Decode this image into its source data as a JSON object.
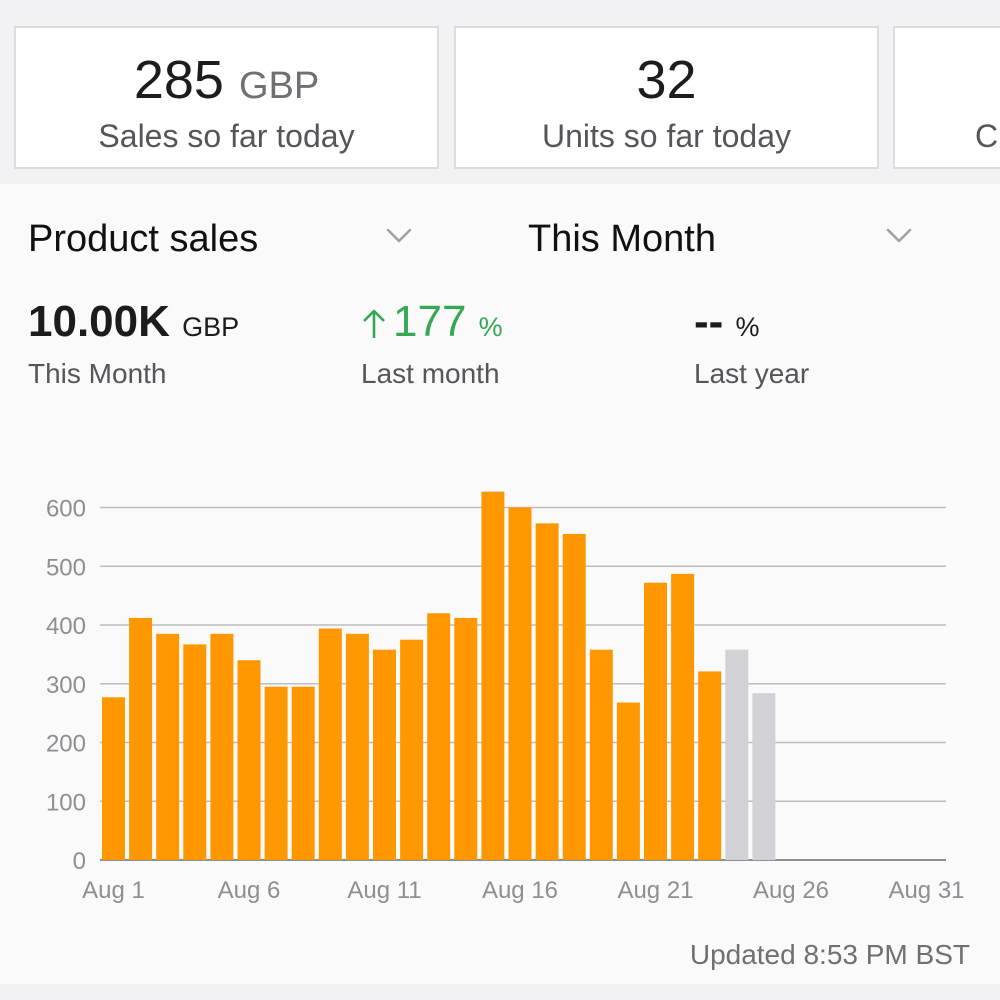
{
  "cards": [
    {
      "value": "285",
      "unit": "GBP",
      "label": "Sales so far today"
    },
    {
      "value": "32",
      "unit": "",
      "label": "Units so far today"
    },
    {
      "value": "",
      "unit": "",
      "label": "C"
    }
  ],
  "controls": {
    "metric_selector": {
      "label": "Product sales",
      "icon": "chevron-down-icon"
    },
    "period_selector": {
      "label": "This Month",
      "icon": "chevron-down-icon"
    }
  },
  "metrics": [
    {
      "value": "10.00K",
      "unit": "GBP",
      "label": "This Month"
    },
    {
      "value": "177",
      "unit": "%",
      "label": "Last month",
      "trend": "up",
      "icon": "arrow-up-icon",
      "color": "#34a853"
    },
    {
      "value": "--",
      "unit": "%",
      "label": "Last year"
    }
  ],
  "chart_data": {
    "type": "bar",
    "categories": [
      "Aug 1",
      "Aug 2",
      "Aug 3",
      "Aug 4",
      "Aug 5",
      "Aug 6",
      "Aug 7",
      "Aug 8",
      "Aug 9",
      "Aug 10",
      "Aug 11",
      "Aug 12",
      "Aug 13",
      "Aug 14",
      "Aug 15",
      "Aug 16",
      "Aug 17",
      "Aug 18",
      "Aug 19",
      "Aug 20",
      "Aug 21",
      "Aug 22",
      "Aug 23",
      "Aug 24",
      "Aug 25",
      "Aug 26",
      "Aug 27",
      "Aug 28",
      "Aug 29",
      "Aug 30",
      "Aug 31"
    ],
    "series": [
      {
        "values": [
          277,
          412,
          385,
          367,
          385,
          340,
          295,
          295,
          394,
          385,
          358,
          375,
          420,
          412,
          627,
          600,
          573,
          555,
          358,
          268,
          472,
          487,
          321,
          null,
          null,
          null,
          null,
          null,
          null,
          null,
          null
        ],
        "color": "#ff9800"
      },
      {
        "values": [
          null,
          null,
          null,
          null,
          null,
          null,
          null,
          null,
          null,
          null,
          null,
          null,
          null,
          null,
          null,
          null,
          null,
          null,
          null,
          null,
          null,
          null,
          null,
          358,
          284,
          null,
          null,
          null,
          null,
          null,
          null
        ],
        "color": "#d1d1d6"
      }
    ],
    "x_tick_labels": [
      "Aug 1",
      "Aug 6",
      "Aug 11",
      "Aug 16",
      "Aug 21",
      "Aug 26",
      "Aug 31"
    ],
    "y_ticks": [
      0,
      100,
      200,
      300,
      400,
      500,
      600
    ],
    "ylim": [
      0,
      640
    ],
    "grid": true,
    "legend": false
  },
  "footer": {
    "updated": "Updated 8:53 PM BST"
  }
}
